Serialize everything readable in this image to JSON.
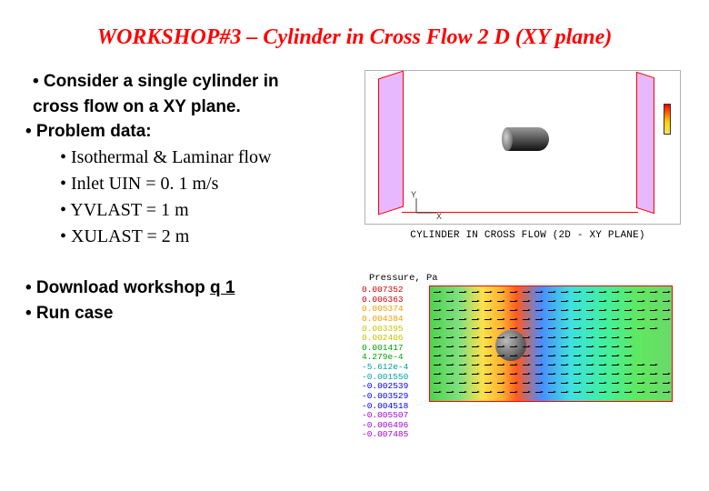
{
  "title": "WORKSHOP#3 – Cylinder in Cross Flow 2 D (XY plane)",
  "bullets": {
    "intro1": "•  Consider a single cylinder in",
    "intro2": " cross flow on a XY plane.",
    "problem_data": "• Problem data:",
    "pd1": "• Isothermal & Laminar flow",
    "pd2": "• Inlet UIN = 0. 1 m/s",
    "pd3": "• YVLAST = 1 m",
    "pd4": "• XULAST = 2 m",
    "download_pre": "• Download workshop ",
    "download_link": "q 1",
    "run": "• Run case"
  },
  "figure_top": {
    "caption": "CYLINDER IN CROSS FLOW (2D - XY PLANE)",
    "axis_x": "X",
    "axis_y": "Y",
    "wall_color": "#e8b8ff",
    "border_color": "#ff0000",
    "legend_colors": [
      "#ff0000",
      "#ffd000"
    ]
  },
  "figure_bottom": {
    "header": "Pressure, Pa",
    "scale": [
      {
        "v": "0.007352",
        "c": "sc-top"
      },
      {
        "v": "0.006363",
        "c": "sc-top"
      },
      {
        "v": "0.005374",
        "c": "sc-mid"
      },
      {
        "v": "0.004384",
        "c": "sc-mid"
      },
      {
        "v": "0.003395",
        "c": "sc-upper-mid"
      },
      {
        "v": "0.002406",
        "c": "sc-upper-mid"
      },
      {
        "v": "0.001417",
        "c": "sc-green"
      },
      {
        "v": "4.279e-4",
        "c": "sc-green"
      },
      {
        "v": "-5.612e-4",
        "c": "sc-cyan"
      },
      {
        "v": "-0.001550",
        "c": "sc-cyan"
      },
      {
        "v": "-0.002539",
        "c": "sc-blue"
      },
      {
        "v": "-0.003529",
        "c": "sc-blue"
      },
      {
        "v": "-0.004518",
        "c": "sc-blue"
      },
      {
        "v": "-0.005507",
        "c": "sc-purple"
      },
      {
        "v": "-0.006496",
        "c": "sc-purple"
      },
      {
        "v": "-0.007485",
        "c": "sc-purple"
      }
    ],
    "border_color": "#ff0000",
    "gradient_stops": [
      "#4fd24f",
      "#7ee07e",
      "#ffe04a",
      "#ffb030",
      "#ff5a20",
      "#4a8cff",
      "#3fe0e0",
      "#40f0a0",
      "#60e860",
      "#6ad86a"
    ]
  },
  "colors": {
    "title": "#ff0000",
    "text": "#000000",
    "background": "#ffffff"
  }
}
